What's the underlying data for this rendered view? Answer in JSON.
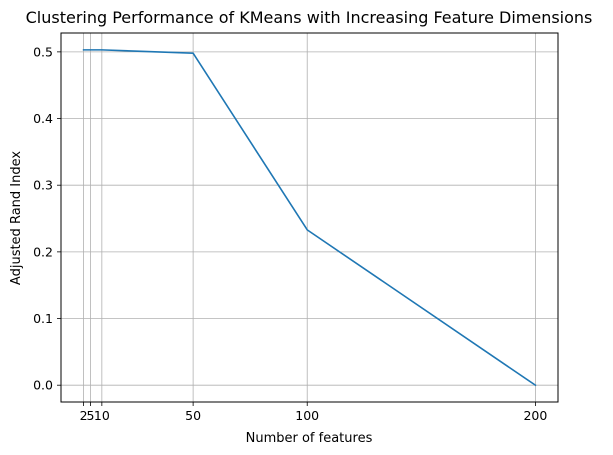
{
  "chart_data": {
    "type": "line",
    "title": "Clustering Performance of KMeans with Increasing Feature Dimensions",
    "xlabel": "Number of features",
    "ylabel": "Adjusted Rand Index",
    "x": [
      2,
      5,
      10,
      50,
      100,
      200
    ],
    "series": [
      {
        "values": [
          0.503,
          0.503,
          0.503,
          0.498,
          0.233,
          0.0
        ],
        "color": "#1f77b4"
      }
    ],
    "xticks": [
      2,
      5,
      10,
      50,
      100,
      200
    ],
    "xtick_labels": [
      "2",
      "5",
      "10",
      "50",
      "100",
      "200"
    ],
    "yticks": [
      0.0,
      0.1,
      0.2,
      0.3,
      0.4,
      0.5
    ],
    "ytick_labels": [
      "0.0",
      "0.1",
      "0.2",
      "0.3",
      "0.4",
      "0.5"
    ],
    "xlim": [
      -7.9,
      209.9
    ],
    "ylim": [
      -0.0252,
      0.5283
    ],
    "grid": true,
    "grid_color": "#b0b0b0",
    "axis_color": "#000000"
  }
}
